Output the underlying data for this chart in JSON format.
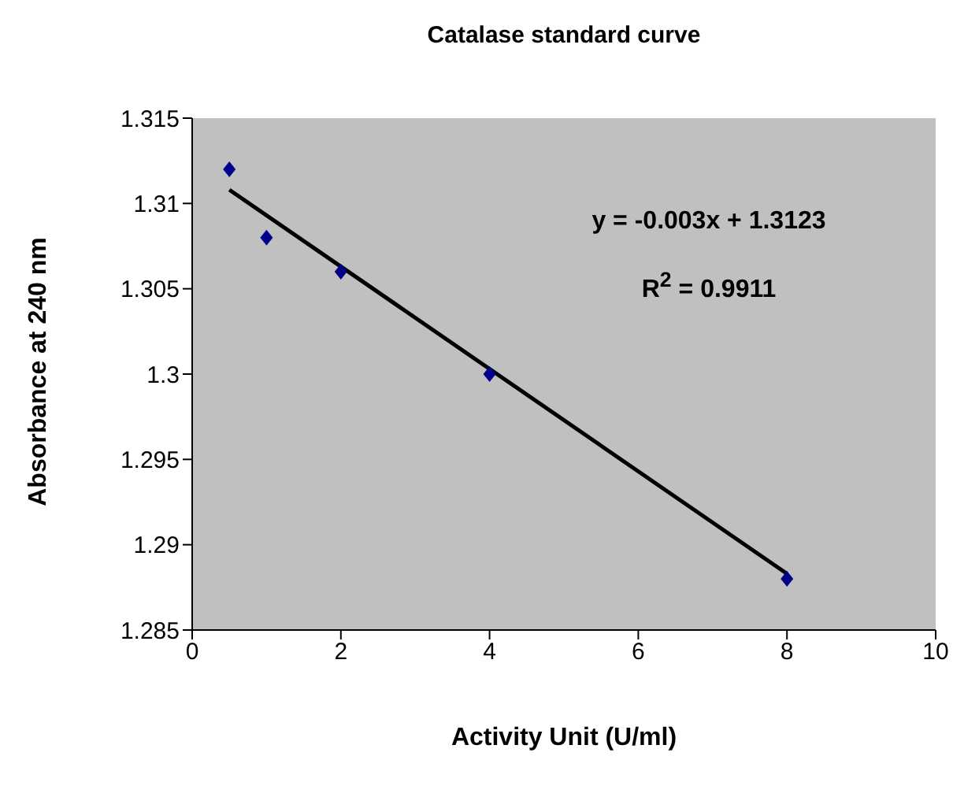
{
  "chart_data": {
    "type": "scatter",
    "title": "Catalase standard curve",
    "xlabel": "Activity Unit (U/ml)",
    "ylabel": "Absorbance at 240 nm",
    "annotations": [
      "y = -0.003x + 1.3123",
      "R$^{2}$ = 0.9911"
    ],
    "series": [
      {
        "color": "#00008b",
        "marker": "diamond",
        "x": [
          0.5,
          1,
          2,
          4,
          8
        ],
        "values": [
          1.312,
          1.308,
          1.306,
          1.3,
          1.288
        ]
      },
      {
        "type": "line",
        "color": "#000000",
        "marker": "none",
        "x": [
          0.5,
          8
        ],
        "values": [
          1.3108,
          1.2883
        ]
      }
    ],
    "xlim": [
      0,
      10
    ],
    "xticks": [
      0,
      2,
      4,
      6,
      8,
      10
    ],
    "ylim": [
      1.285,
      1.315
    ],
    "yticks": [
      1.285,
      1.29,
      1.295,
      1.3,
      1.305,
      1.31,
      1.315
    ]
  }
}
